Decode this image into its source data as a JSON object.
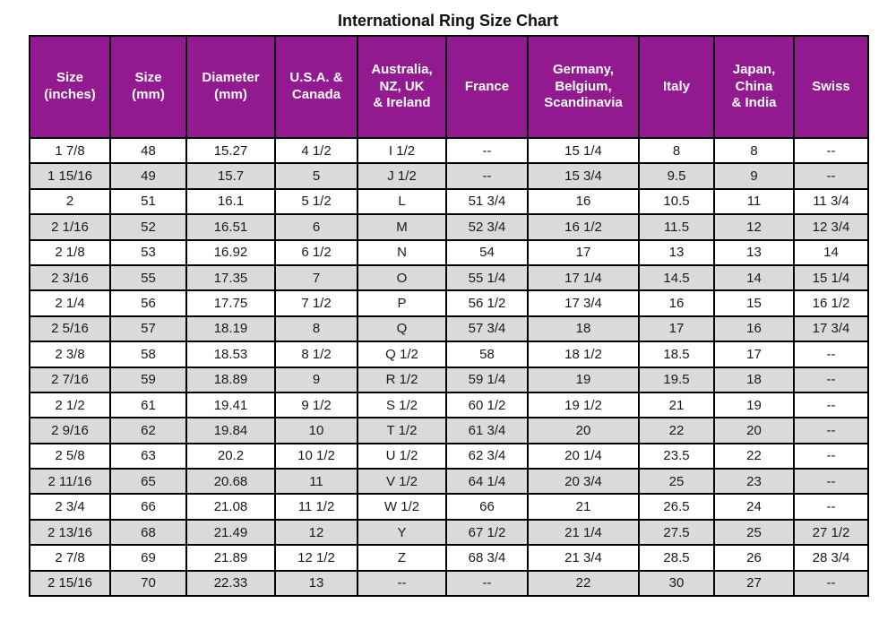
{
  "title": "International Ring Size Chart",
  "colors": {
    "header_bg": "#8b1189",
    "header_bg_alt": "#9a2397",
    "header_text": "#ffffff",
    "row_alt_bg": "#d2d2d2",
    "row_alt_bg_dot": "#e3e3e3",
    "border": "#000000",
    "title_text": "#111111"
  },
  "table": {
    "display_headers": [
      "Size\n(inches)",
      "Size\n(mm)",
      "Diameter\n(mm)",
      "U.S.A. &\nCanada",
      "Australia,\nNZ, UK\n& Ireland",
      "France",
      "Germany,\nBelgium,\nScandinavia",
      "Italy",
      "Japan,\nChina\n& India",
      "Swiss"
    ]
  },
  "chart_data": {
    "type": "table",
    "title": "International Ring Size Chart",
    "columns": [
      "Size (inches)",
      "Size (mm)",
      "Diameter (mm)",
      "U.S.A. & Canada",
      "Australia, NZ, UK & Ireland",
      "France",
      "Germany, Belgium, Scandinavia",
      "Italy",
      "Japan, China & India",
      "Swiss"
    ],
    "rows": [
      [
        "1 7/8",
        "48",
        "15.27",
        "4 1/2",
        "I 1/2",
        "--",
        "15 1/4",
        "8",
        "8",
        "--"
      ],
      [
        "1 15/16",
        "49",
        "15.7",
        "5",
        "J 1/2",
        "--",
        "15 3/4",
        "9.5",
        "9",
        "--"
      ],
      [
        "2",
        "51",
        "16.1",
        "5 1/2",
        "L",
        "51 3/4",
        "16",
        "10.5",
        "11",
        "11 3/4"
      ],
      [
        "2 1/16",
        "52",
        "16.51",
        "6",
        "M",
        "52 3/4",
        "16 1/2",
        "11.5",
        "12",
        "12 3/4"
      ],
      [
        "2 1/8",
        "53",
        "16.92",
        "6 1/2",
        "N",
        "54",
        "17",
        "13",
        "13",
        "14"
      ],
      [
        "2 3/16",
        "55",
        "17.35",
        "7",
        "O",
        "55 1/4",
        "17 1/4",
        "14.5",
        "14",
        "15 1/4"
      ],
      [
        "2 1/4",
        "56",
        "17.75",
        "7 1/2",
        "P",
        "56 1/2",
        "17 3/4",
        "16",
        "15",
        "16 1/2"
      ],
      [
        "2 5/16",
        "57",
        "18.19",
        "8",
        "Q",
        "57 3/4",
        "18",
        "17",
        "16",
        "17 3/4"
      ],
      [
        "2 3/8",
        "58",
        "18.53",
        "8 1/2",
        "Q 1/2",
        "58",
        "18 1/2",
        "18.5",
        "17",
        "--"
      ],
      [
        "2 7/16",
        "59",
        "18.89",
        "9",
        "R 1/2",
        "59 1/4",
        "19",
        "19.5",
        "18",
        "--"
      ],
      [
        "2 1/2",
        "61",
        "19.41",
        "9 1/2",
        "S 1/2",
        "60 1/2",
        "19 1/2",
        "21",
        "19",
        "--"
      ],
      [
        "2 9/16",
        "62",
        "19.84",
        "10",
        "T 1/2",
        "61 3/4",
        "20",
        "22",
        "20",
        "--"
      ],
      [
        "2 5/8",
        "63",
        "20.2",
        "10 1/2",
        "U 1/2",
        "62 3/4",
        "20 1/4",
        "23.5",
        "22",
        "--"
      ],
      [
        "2 11/16",
        "65",
        "20.68",
        "11",
        "V 1/2",
        "64 1/4",
        "20 3/4",
        "25",
        "23",
        "--"
      ],
      [
        "2 3/4",
        "66",
        "21.08",
        "11 1/2",
        "W 1/2",
        "66",
        "21",
        "26.5",
        "24",
        "--"
      ],
      [
        "2 13/16",
        "68",
        "21.49",
        "12",
        "Y",
        "67 1/2",
        "21 1/4",
        "27.5",
        "25",
        "27 1/2"
      ],
      [
        "2 7/8",
        "69",
        "21.89",
        "12 1/2",
        "Z",
        "68 3/4",
        "21 3/4",
        "28.5",
        "26",
        "28 3/4"
      ],
      [
        "2 15/16",
        "70",
        "22.33",
        "13",
        "--",
        "--",
        "22",
        "30",
        "27",
        "--"
      ]
    ]
  }
}
